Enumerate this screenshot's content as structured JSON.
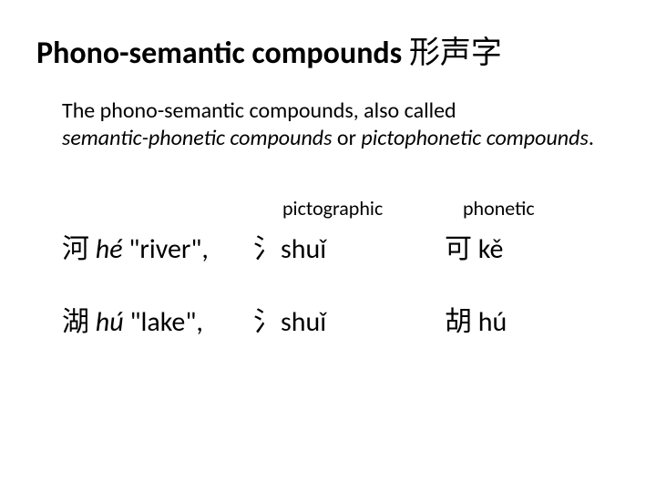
{
  "title": {
    "main": "Phono-semantic compounds",
    "cjk": "形声字"
  },
  "description": {
    "line1_plain1": "The phono-semantic compounds, also called ",
    "line2_italic1": "semantic-phonetic compounds",
    "line2_plain1": " or ",
    "line2_italic2": "pictophonetic compounds",
    "line2_plain2": "."
  },
  "headers": {
    "pictographic": "pictographic",
    "phonetic": "phonetic"
  },
  "rows": [
    {
      "char": "河",
      "pinyin": "hé",
      "gloss": "\"river\",",
      "radical": "氵",
      "radical_reading": "shuǐ",
      "phonetic_char": "可",
      "phonetic_reading": "kě"
    },
    {
      "char": "湖",
      "pinyin": "hú",
      "gloss": "\"lake\",",
      "radical": "氵",
      "radical_reading": "shuǐ",
      "phonetic_char": "胡",
      "phonetic_reading": "hú"
    }
  ],
  "style": {
    "background": "#ffffff",
    "text_color": "#000000",
    "title_fontsize": 34,
    "body_fontsize": 24,
    "row_fontsize": 30,
    "header_fontsize": 22
  }
}
